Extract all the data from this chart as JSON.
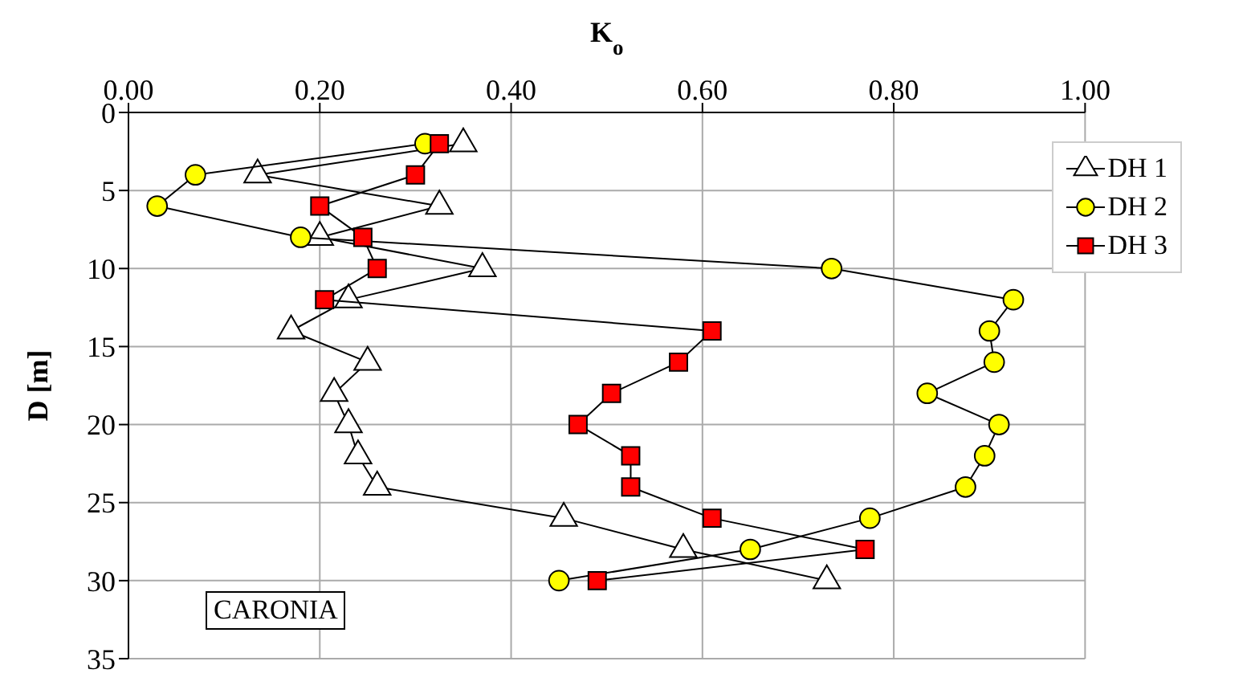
{
  "chart_data": {
    "type": "line",
    "xlabel": "K$_{o}$",
    "ylabel": "D [m]",
    "xlim": [
      0,
      1
    ],
    "xticks": [
      {
        "value": 0,
        "label": "0.00"
      },
      {
        "value": 0.2,
        "label": "0.20"
      },
      {
        "value": 0.4,
        "label": "0.40"
      },
      {
        "value": 0.6,
        "label": "0.60"
      },
      {
        "value": 0.8,
        "label": "0.80"
      },
      {
        "value": 1,
        "label": "1.00"
      }
    ],
    "ylim": [
      35,
      0
    ],
    "yticks": [
      0,
      5,
      10,
      15,
      20,
      25,
      30,
      35
    ],
    "grid": true,
    "legend": "top right",
    "line_style": "solid",
    "annotations": [
      "CARONIA"
    ],
    "series": [
      {
        "name": "DH 1",
        "color": "#ffffff",
        "marker": "triangle",
        "x": [
          0.35,
          0.135,
          0.325,
          0.2,
          0.37,
          0.23,
          0.17,
          0.25,
          0.215,
          0.23,
          0.24,
          0.26,
          0.455,
          0.58,
          0.73
        ],
        "values": [
          2,
          4,
          6,
          8,
          10,
          12,
          14,
          16,
          18,
          20,
          22,
          24,
          26,
          28,
          30
        ]
      },
      {
        "name": "DH 2",
        "color": "#ffff00",
        "marker": "circle",
        "x": [
          0.31,
          0.07,
          0.03,
          0.18,
          0.735,
          0.925,
          0.9,
          0.905,
          0.835,
          0.91,
          0.895,
          0.875,
          0.775,
          0.65,
          0.45
        ],
        "values": [
          2,
          4,
          6,
          8,
          10,
          12,
          14,
          16,
          18,
          20,
          22,
          24,
          26,
          28,
          30
        ]
      },
      {
        "name": "DH 3",
        "color": "#ff0000",
        "marker": "square",
        "x": [
          0.325,
          0.3,
          0.2,
          0.245,
          0.26,
          0.205,
          0.61,
          0.575,
          0.505,
          0.47,
          0.525,
          0.525,
          0.61,
          0.77,
          0.49
        ],
        "values": [
          2,
          4,
          6,
          8,
          10,
          12,
          14,
          16,
          18,
          20,
          22,
          24,
          26,
          28,
          30
        ]
      }
    ]
  }
}
